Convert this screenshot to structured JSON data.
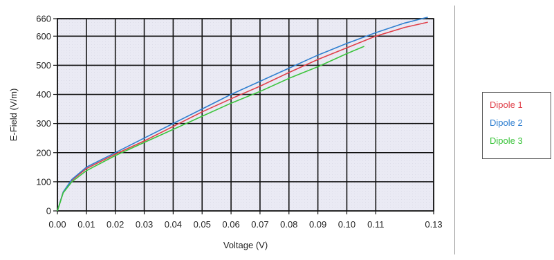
{
  "chart_data": {
    "type": "line",
    "title": "",
    "xlabel": "Voltage (V)",
    "ylabel": "E-Field (V/m)",
    "xlim": [
      0,
      0.13
    ],
    "ylim": [
      0,
      660
    ],
    "x_ticks": [
      0.0,
      0.01,
      0.02,
      0.03,
      0.04,
      0.05,
      0.06,
      0.07,
      0.08,
      0.09,
      0.1,
      0.11,
      0.13
    ],
    "x_tick_labels": [
      "0.00",
      "0.01",
      "0.02",
      "0.03",
      "0.04",
      "0.05",
      "0.06",
      "0.07",
      "0.08",
      "0.09",
      "0.10",
      "0.11",
      "0.13"
    ],
    "y_ticks": [
      0,
      100,
      200,
      300,
      400,
      500,
      600,
      660
    ],
    "y_tick_labels": [
      "0",
      "100",
      "200",
      "300",
      "400",
      "500",
      "600",
      "660"
    ],
    "grid": true,
    "legend_position": "right",
    "series": [
      {
        "name": "Dipole 1",
        "color": "#e0404a",
        "x": [
          0,
          0.002,
          0.005,
          0.01,
          0.02,
          0.03,
          0.04,
          0.05,
          0.06,
          0.07,
          0.08,
          0.09,
          0.1,
          0.11,
          0.12,
          0.128
        ],
        "y": [
          0,
          65,
          105,
          145,
          195,
          240,
          290,
          340,
          385,
          428,
          475,
          520,
          560,
          600,
          630,
          648
        ]
      },
      {
        "name": "Dipole 2",
        "color": "#2f7fd0",
        "x": [
          0,
          0.002,
          0.005,
          0.01,
          0.02,
          0.03,
          0.04,
          0.05,
          0.06,
          0.07,
          0.08,
          0.09,
          0.1,
          0.11,
          0.12,
          0.128
        ],
        "y": [
          0,
          65,
          108,
          150,
          200,
          250,
          300,
          350,
          400,
          445,
          490,
          535,
          575,
          612,
          645,
          665
        ]
      },
      {
        "name": "Dipole 3",
        "color": "#3cc43c",
        "x": [
          0,
          0.002,
          0.005,
          0.01,
          0.02,
          0.03,
          0.04,
          0.05,
          0.06,
          0.07,
          0.08,
          0.09,
          0.1,
          0.106
        ],
        "y": [
          0,
          62,
          100,
          138,
          190,
          235,
          280,
          325,
          370,
          410,
          455,
          495,
          540,
          565
        ]
      }
    ]
  }
}
